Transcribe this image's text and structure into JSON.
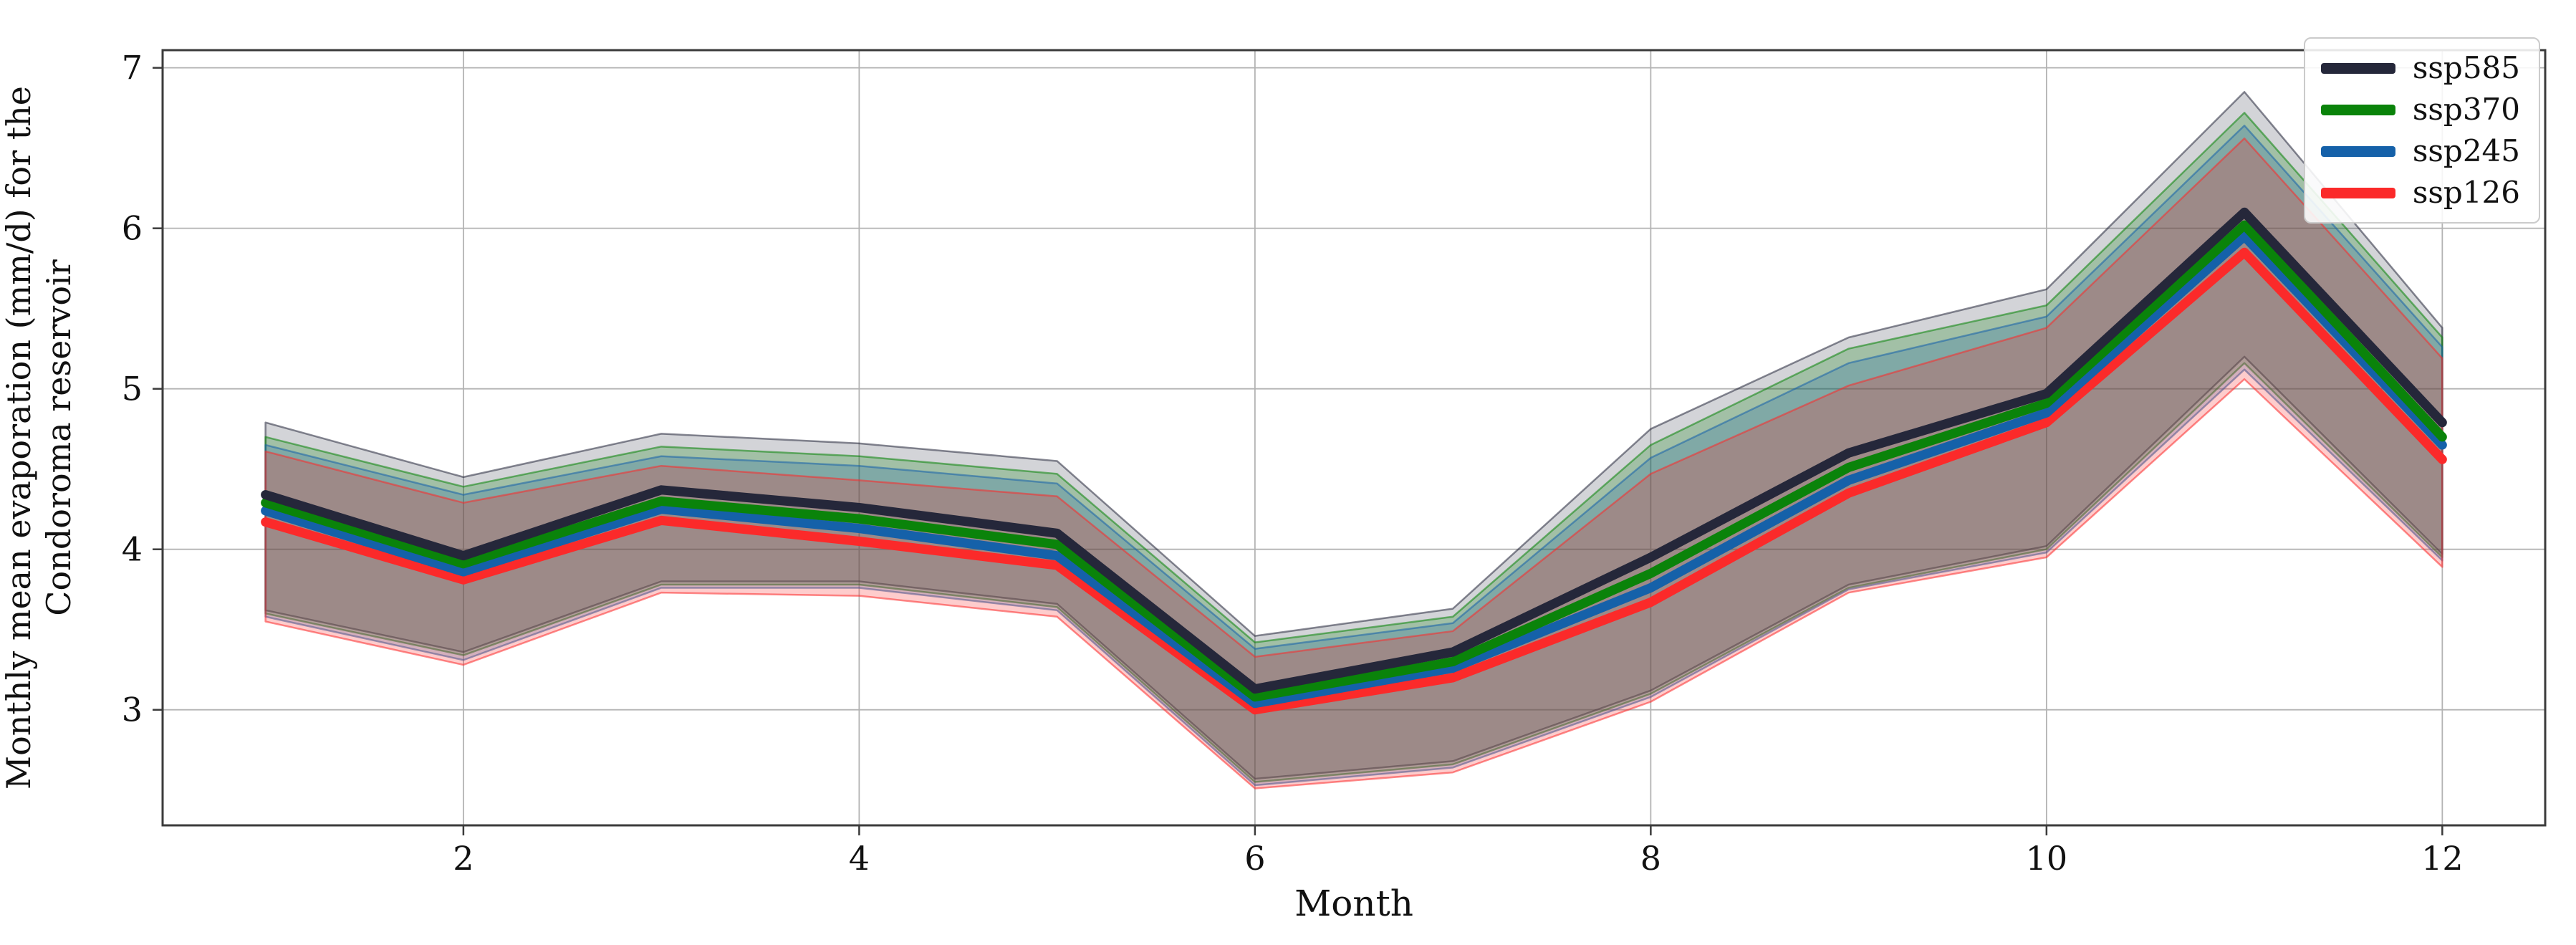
{
  "chart_data": {
    "type": "line",
    "title": "",
    "xlabel": "Month",
    "ylabel_lines": [
      "Monthly mean evaporation (mm/d) for the",
      "Condoroma reservoir"
    ],
    "x": [
      1,
      2,
      3,
      4,
      5,
      6,
      7,
      8,
      9,
      10,
      11,
      12
    ],
    "xlim": [
      0.48,
      12.52
    ],
    "ylim": [
      2.28,
      7.11
    ],
    "xticks": [
      2,
      4,
      6,
      8,
      10,
      12
    ],
    "yticks": [
      3,
      4,
      5,
      6,
      7
    ],
    "grid": true,
    "grid_color": "#b3b3b3",
    "spine_color": "#3b3b3b",
    "legend_position": "upper right",
    "band_edge_opacity": 0.55,
    "series": [
      {
        "name": "ssp585",
        "color": "#25273a",
        "band_opacity": 0.2,
        "values": [
          4.34,
          3.96,
          4.37,
          4.26,
          4.1,
          3.13,
          3.36,
          3.95,
          4.6,
          4.97,
          6.1,
          4.79
        ],
        "upper": [
          4.79,
          4.45,
          4.72,
          4.66,
          4.55,
          3.46,
          3.63,
          4.75,
          5.32,
          5.62,
          6.85,
          5.38
        ],
        "lower": [
          3.62,
          3.36,
          3.8,
          3.8,
          3.66,
          2.57,
          2.68,
          3.12,
          3.78,
          4.02,
          5.2,
          3.97
        ]
      },
      {
        "name": "ssp370",
        "color": "#0a830a",
        "band_opacity": 0.24,
        "values": [
          4.29,
          3.91,
          4.3,
          4.19,
          4.03,
          3.08,
          3.3,
          3.85,
          4.51,
          4.91,
          6.02,
          4.7
        ],
        "upper": [
          4.7,
          4.39,
          4.64,
          4.58,
          4.47,
          3.42,
          3.58,
          4.65,
          5.25,
          5.52,
          6.72,
          5.32
        ],
        "lower": [
          3.6,
          3.34,
          3.78,
          3.78,
          3.64,
          2.55,
          2.66,
          3.1,
          3.76,
          4.0,
          5.16,
          3.95
        ]
      },
      {
        "name": "ssp245",
        "color": "#1561a9",
        "band_opacity": 0.24,
        "values": [
          4.24,
          3.86,
          4.25,
          4.13,
          3.96,
          3.04,
          3.26,
          3.76,
          4.43,
          4.85,
          5.95,
          4.65
        ],
        "upper": [
          4.65,
          4.34,
          4.58,
          4.52,
          4.41,
          3.38,
          3.54,
          4.57,
          5.16,
          5.45,
          6.64,
          5.26
        ],
        "lower": [
          3.58,
          3.31,
          3.76,
          3.76,
          3.62,
          2.53,
          2.64,
          3.08,
          3.75,
          3.98,
          5.12,
          3.93
        ]
      },
      {
        "name": "ssp126",
        "color": "#fb2a2a",
        "band_opacity": 0.24,
        "values": [
          4.17,
          3.81,
          4.18,
          4.05,
          3.9,
          3.0,
          3.2,
          3.67,
          4.35,
          4.79,
          5.85,
          4.56
        ],
        "upper": [
          4.61,
          4.29,
          4.52,
          4.43,
          4.33,
          3.33,
          3.49,
          4.47,
          5.02,
          5.38,
          6.56,
          5.19
        ],
        "lower": [
          3.55,
          3.28,
          3.73,
          3.71,
          3.58,
          2.51,
          2.61,
          3.05,
          3.73,
          3.95,
          5.06,
          3.89
        ]
      }
    ]
  }
}
